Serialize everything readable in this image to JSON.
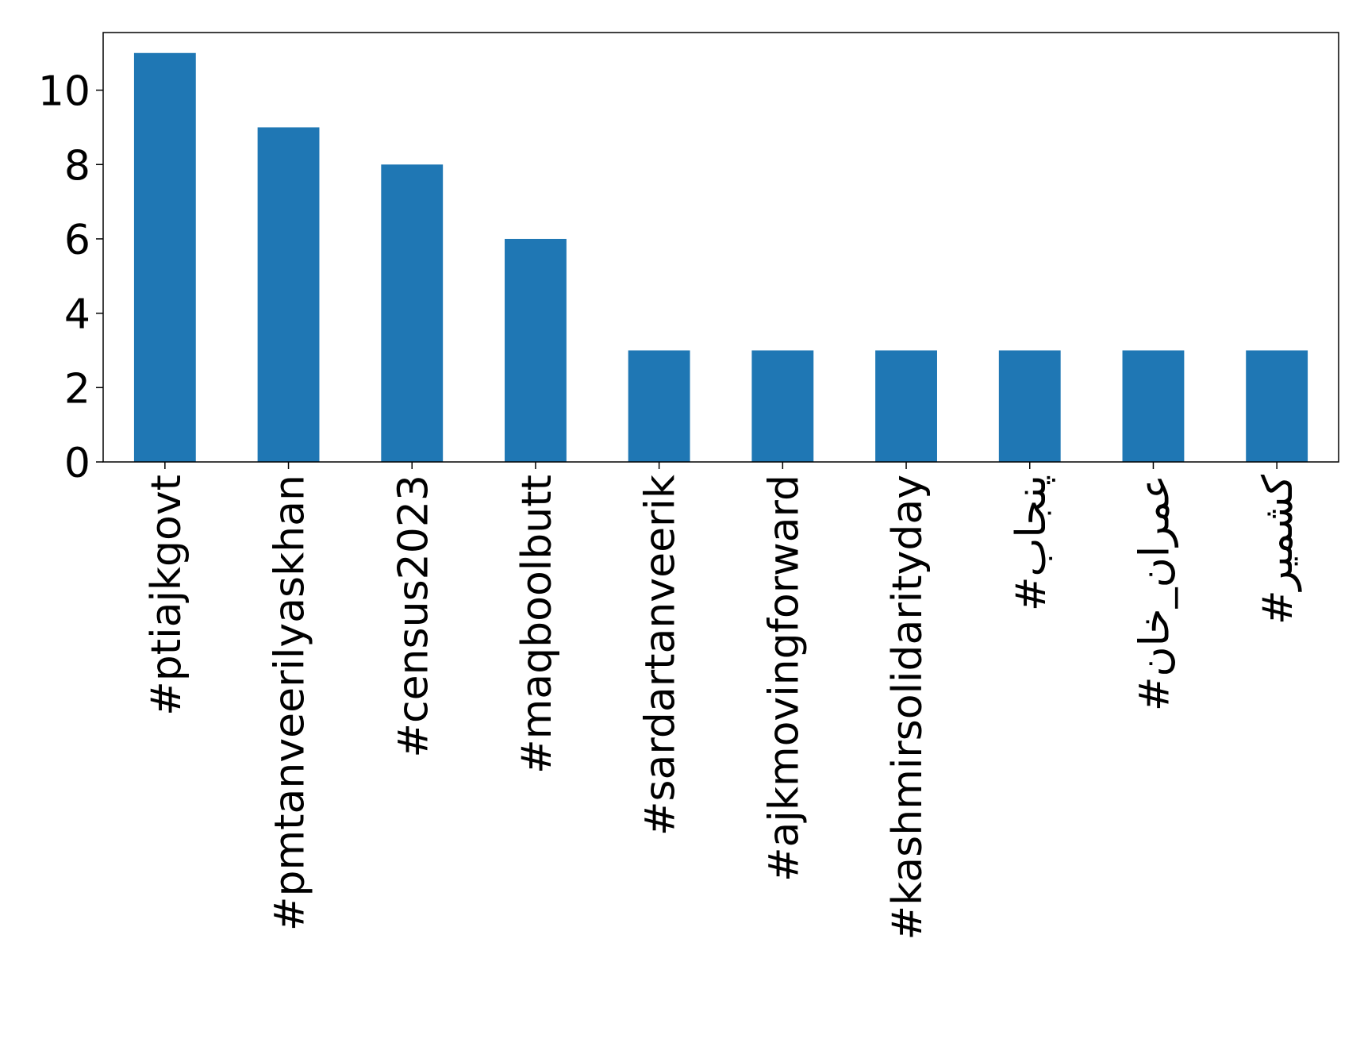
{
  "chart_data": {
    "type": "bar",
    "categories": [
      "#ptiajkgovt",
      "#pmtanveerilyaskhan",
      "#census2023",
      "#maqboolbutt",
      "#sardartanveerik",
      "#ajkmovingforward",
      "#kashmirsolidarityday",
      "#پنجاب",
      "#عمران_خان",
      "#کشمیر"
    ],
    "values": [
      11,
      9,
      8,
      6,
      3,
      3,
      3,
      3,
      3,
      3
    ],
    "color": "#1f77b4",
    "ylim": [
      0,
      11.55
    ],
    "yticks": [
      0,
      2,
      4,
      6,
      8,
      10
    ],
    "grid": false
  }
}
